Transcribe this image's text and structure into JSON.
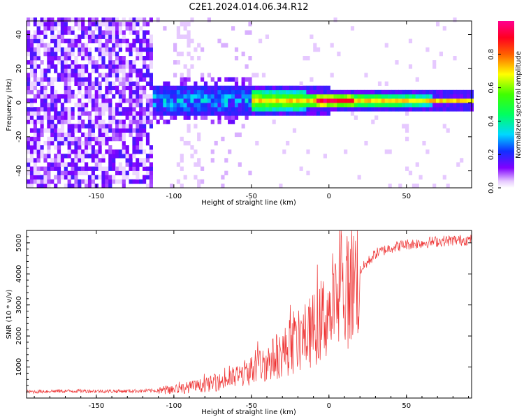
{
  "title": "C2E1.2024.014.06.34.R12",
  "chart_data": [
    {
      "type": "heatmap",
      "xlabel": "Height of straight line (km)",
      "ylabel": "Frequency (Hz)",
      "xlim": [
        -195,
        92
      ],
      "ylim": [
        -50,
        48
      ],
      "x_ticks": [
        -150,
        -100,
        -50,
        0,
        50
      ],
      "y_ticks": [
        -40,
        -20,
        0,
        20,
        40
      ],
      "colorbar": {
        "label": "Normalized spectral amplitude",
        "range": [
          0,
          1
        ],
        "ticks": [
          0.0,
          0.2,
          0.4,
          0.6,
          0.8
        ]
      },
      "description_regions": [
        {
          "x_range": [
            -195,
            -115
          ],
          "kind": "broadband noise",
          "amplitude": 0.05
        },
        {
          "x_range": [
            -115,
            -50
          ],
          "kind": "scattered signal near 0 Hz",
          "amplitude": 0.3
        },
        {
          "x_range": [
            -50,
            92
          ],
          "kind": "narrow band at 0 Hz",
          "amplitude": 0.7
        }
      ]
    },
    {
      "type": "line",
      "xlabel": "Height of straight line (km)",
      "ylabel": "SNR (10 * v/v)",
      "xlim": [
        -195,
        92
      ],
      "ylim": [
        0,
        5400
      ],
      "x_ticks": [
        -150,
        -100,
        -50,
        0,
        50
      ],
      "y_ticks": [
        1000,
        2000,
        3000,
        4000,
        5000
      ],
      "color": "#ee3333",
      "series": [
        {
          "x": [
            -195,
            -180,
            -160,
            -140,
            -120,
            -110,
            -100,
            -90,
            -80,
            -70,
            -60,
            -50,
            -40,
            -30,
            -20,
            -10,
            0,
            10,
            20,
            30,
            40,
            50,
            60,
            70,
            80,
            92
          ],
          "values": [
            200,
            220,
            230,
            220,
            230,
            240,
            280,
            350,
            420,
            520,
            680,
            900,
            1150,
            1450,
            1800,
            2200,
            2800,
            3300,
            4100,
            4650,
            4850,
            4950,
            5000,
            5050,
            5080,
            5100
          ]
        }
      ]
    }
  ]
}
